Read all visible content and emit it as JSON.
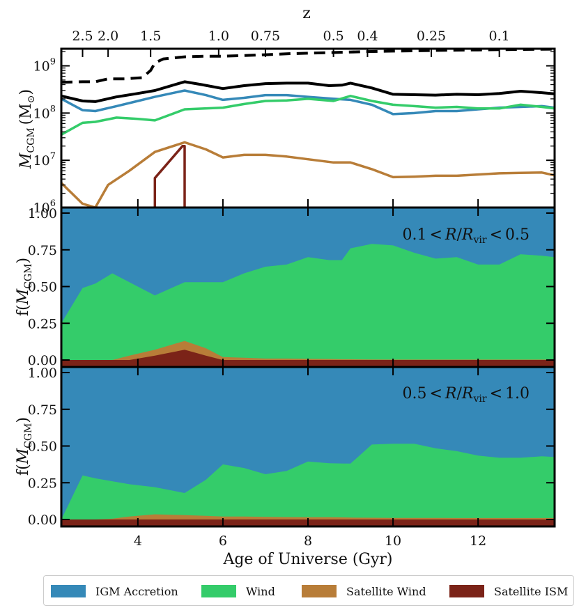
{
  "colors": {
    "igm": "#3589b8",
    "wind": "#34cc6a",
    "satwind": "#b87d38",
    "satism": "#7b2318",
    "total": "#000000",
    "halo": "#000000"
  },
  "chart_data": [
    {
      "type": "line",
      "panel": "mass",
      "ylabel_main": "M",
      "ylabel_sub": "CGM",
      "ylabel_unit": "(M",
      "ylabel_unit_sub": "⊙",
      "ylabel_close": ")",
      "yscale": "log",
      "ylim": [
        1000000,
        2300000000
      ],
      "xlim": [
        2.2,
        13.8
      ],
      "top_axis_label": "z",
      "top_ticks": [
        {
          "label": "2.5",
          "age": 2.7
        },
        {
          "label": "2.0",
          "age": 3.3
        },
        {
          "label": "1.5",
          "age": 4.3
        },
        {
          "label": "1.0",
          "age": 5.9
        },
        {
          "label": "0.75",
          "age": 7.0
        },
        {
          "label": "0.5",
          "age": 8.6
        },
        {
          "label": "0.4",
          "age": 9.4
        },
        {
          "label": "0.25",
          "age": 10.9
        },
        {
          "label": "0.1",
          "age": 12.5
        }
      ],
      "series": [
        {
          "key": "halo",
          "style": "dashed",
          "x": [
            2.2,
            2.7,
            3.0,
            3.3,
            3.7,
            4.1,
            4.3,
            4.4,
            4.6,
            5.1,
            5.6,
            6.0,
            6.5,
            7.0,
            7.5,
            8.0,
            8.5,
            9.0,
            9.5,
            10.0,
            10.5,
            11.0,
            11.5,
            12.0,
            12.5,
            13.0,
            13.8
          ],
          "y": [
            450000000,
            460000000,
            460000000,
            530000000,
            530000000,
            560000000,
            800000000,
            1150000000,
            1400000000,
            1550000000,
            1600000000,
            1600000000,
            1650000000,
            1720000000,
            1800000000,
            1850000000,
            1900000000,
            1960000000,
            2010000000,
            2050000000,
            2080000000,
            2120000000,
            2150000000,
            2170000000,
            2200000000,
            2220000000,
            2250000000
          ]
        },
        {
          "key": "total",
          "style": "solid",
          "x": [
            2.2,
            2.7,
            3.0,
            3.5,
            4.0,
            4.4,
            5.1,
            5.5,
            6.0,
            6.5,
            7.0,
            7.5,
            8.0,
            8.5,
            8.8,
            9.0,
            9.5,
            10.0,
            10.5,
            11.0,
            11.5,
            12.0,
            12.5,
            13.0,
            13.5,
            13.8
          ],
          "y": [
            230000000,
            180000000,
            175000000,
            220000000,
            260000000,
            300000000,
            460000000,
            400000000,
            330000000,
            380000000,
            420000000,
            430000000,
            430000000,
            380000000,
            390000000,
            430000000,
            340000000,
            250000000,
            245000000,
            240000000,
            250000000,
            245000000,
            260000000,
            290000000,
            270000000,
            255000000
          ]
        },
        {
          "key": "igm",
          "style": "solid",
          "x": [
            2.2,
            2.7,
            3.0,
            3.5,
            4.0,
            4.4,
            5.1,
            5.6,
            6.0,
            6.5,
            7.0,
            7.5,
            8.0,
            8.6,
            9.0,
            9.5,
            10.0,
            10.5,
            11.0,
            11.5,
            12.0,
            12.5,
            13.0,
            13.5,
            13.8
          ],
          "y": [
            200000000,
            115000000,
            110000000,
            140000000,
            180000000,
            220000000,
            300000000,
            240000000,
            190000000,
            210000000,
            240000000,
            240000000,
            220000000,
            200000000,
            190000000,
            150000000,
            95000000,
            100000000,
            110000000,
            110000000,
            120000000,
            130000000,
            135000000,
            140000000,
            130000000
          ]
        },
        {
          "key": "wind",
          "style": "solid",
          "x": [
            2.2,
            2.7,
            3.0,
            3.5,
            4.0,
            4.4,
            5.1,
            6.0,
            6.5,
            7.0,
            7.5,
            8.0,
            8.6,
            9.0,
            9.5,
            10.0,
            10.5,
            11.0,
            11.5,
            12.0,
            12.5,
            13.0,
            13.5,
            13.8
          ],
          "y": [
            35000000,
            62000000,
            65000000,
            80000000,
            75000000,
            70000000,
            120000000,
            130000000,
            155000000,
            180000000,
            185000000,
            200000000,
            180000000,
            230000000,
            180000000,
            150000000,
            140000000,
            130000000,
            135000000,
            125000000,
            125000000,
            150000000,
            135000000,
            125000000
          ]
        },
        {
          "key": "satwind",
          "style": "solid",
          "x": [
            2.2,
            2.7,
            3.0,
            3.3,
            3.8,
            4.4,
            5.1,
            5.6,
            6.0,
            6.5,
            7.0,
            7.5,
            8.0,
            8.6,
            9.0,
            9.5,
            10.0,
            10.5,
            11.0,
            11.5,
            12.0,
            12.5,
            13.0,
            13.5,
            13.8
          ],
          "y": [
            3300000,
            1200000,
            1000000,
            3000000,
            6000000,
            15000000,
            24000000,
            17000000,
            11500000,
            13000000,
            13000000,
            12000000,
            10500000,
            9000000,
            9000000,
            6500000,
            4400000,
            4500000,
            4700000,
            4700000,
            5000000,
            5300000,
            5400000,
            5500000,
            4800000
          ]
        },
        {
          "key": "satism",
          "style": "solid",
          "x": [
            4.4,
            4.4,
            5.05,
            5.1,
            5.1
          ],
          "y": [
            1000000,
            4200000,
            20000000,
            20000000,
            1000000
          ]
        }
      ],
      "ytick_values": [
        1000000,
        10000000,
        100000000,
        1000000000
      ],
      "ytick_base": "10",
      "ytick_exponents": [
        "6",
        "7",
        "8",
        "9"
      ]
    },
    {
      "type": "area",
      "panel": "frac_inner",
      "annotation_lo": "0.1",
      "annotation_var": "R",
      "annotation_slash": "/",
      "annotation_rvar": "R",
      "annotation_rsub": "vir",
      "annotation_hi": "0.5",
      "ylabel_f": "f(",
      "ylabel_M": "M",
      "ylabel_sub": "CGM",
      "ylabel_close": ")",
      "ylim": [
        0,
        1.0
      ],
      "yticks": [
        "0.00",
        "0.25",
        "0.50",
        "0.75",
        "1.00"
      ],
      "x": [
        2.2,
        2.7,
        3.0,
        3.4,
        3.8,
        4.4,
        5.1,
        5.6,
        6.0,
        6.5,
        7.0,
        7.5,
        8.0,
        8.5,
        8.8,
        9.0,
        9.5,
        10.0,
        10.5,
        11.0,
        11.5,
        12.0,
        12.5,
        13.0,
        13.5,
        13.8
      ],
      "satism": [
        0.0,
        0.0,
        0.0,
        0.0,
        0.0,
        0.03,
        0.07,
        0.03,
        0.0,
        0.0,
        0.0,
        0.0,
        0.0,
        0.0,
        0.0,
        0.0,
        0.0,
        0.0,
        0.0,
        0.0,
        0.0,
        0.0,
        0.0,
        0.0,
        0.0,
        0.0
      ],
      "satwind": [
        0.0,
        0.0,
        0.0,
        0.0,
        0.03,
        0.04,
        0.06,
        0.05,
        0.02,
        0.015,
        0.01,
        0.01,
        0.008,
        0.007,
        0.005,
        0.005,
        0.004,
        0.003,
        0.003,
        0.003,
        0.003,
        0.003,
        0.003,
        0.003,
        0.003,
        0.003
      ],
      "wind": [
        0.25,
        0.49,
        0.52,
        0.59,
        0.5,
        0.37,
        0.4,
        0.45,
        0.51,
        0.575,
        0.625,
        0.64,
        0.692,
        0.673,
        0.675,
        0.755,
        0.786,
        0.777,
        0.727,
        0.687,
        0.697,
        0.647,
        0.647,
        0.717,
        0.707,
        0.697
      ],
      "igm_top": 1.0
    },
    {
      "type": "area",
      "panel": "frac_outer",
      "annotation_lo": "0.5",
      "annotation_var": "R",
      "annotation_slash": "/",
      "annotation_rvar": "R",
      "annotation_rsub": "vir",
      "annotation_hi": "1.0",
      "ylabel_f": "f(",
      "ylabel_M": "M",
      "ylabel_sub": "CGM",
      "ylabel_close": ")",
      "xlabel": "Age of Universe (Gyr)",
      "xticks": [
        "4",
        "6",
        "8",
        "10",
        "12"
      ],
      "xtick_values": [
        4,
        6,
        8,
        10,
        12
      ],
      "ylim": [
        0,
        1.0
      ],
      "yticks": [
        "0.00",
        "0.25",
        "0.50",
        "0.75",
        "1.00"
      ],
      "x": [
        2.2,
        2.7,
        3.0,
        3.4,
        3.8,
        4.4,
        5.1,
        5.6,
        6.0,
        6.5,
        7.0,
        7.5,
        8.0,
        8.5,
        8.8,
        9.0,
        9.5,
        10.0,
        10.5,
        11.0,
        11.5,
        12.0,
        12.5,
        13.0,
        13.5,
        13.8
      ],
      "satism": [
        0.0,
        0.0,
        0.0,
        0.0,
        0.0,
        0.0,
        0.0,
        0.0,
        0.0,
        0.0,
        0.0,
        0.0,
        0.0,
        0.0,
        0.0,
        0.0,
        0.0,
        0.0,
        0.0,
        0.0,
        0.0,
        0.0,
        0.0,
        0.0,
        0.0,
        0.0
      ],
      "satwind": [
        0.0,
        0.0,
        0.0,
        0.005,
        0.02,
        0.035,
        0.03,
        0.025,
        0.02,
        0.02,
        0.018,
        0.016,
        0.015,
        0.015,
        0.014,
        0.013,
        0.012,
        0.011,
        0.011,
        0.011,
        0.01,
        0.01,
        0.01,
        0.01,
        0.01,
        0.01
      ],
      "wind": [
        0.0,
        0.3,
        0.28,
        0.255,
        0.22,
        0.185,
        0.15,
        0.245,
        0.355,
        0.33,
        0.29,
        0.315,
        0.38,
        0.368,
        0.367,
        0.367,
        0.498,
        0.504,
        0.504,
        0.474,
        0.455,
        0.425,
        0.41,
        0.41,
        0.42,
        0.415
      ],
      "igm_top": 1.0
    }
  ],
  "legend": {
    "items": [
      {
        "key": "igm",
        "label": "IGM Accretion"
      },
      {
        "key": "wind",
        "label": "Wind"
      },
      {
        "key": "satwind",
        "label": "Satellite Wind"
      },
      {
        "key": "satism",
        "label": "Satellite ISM"
      }
    ]
  }
}
